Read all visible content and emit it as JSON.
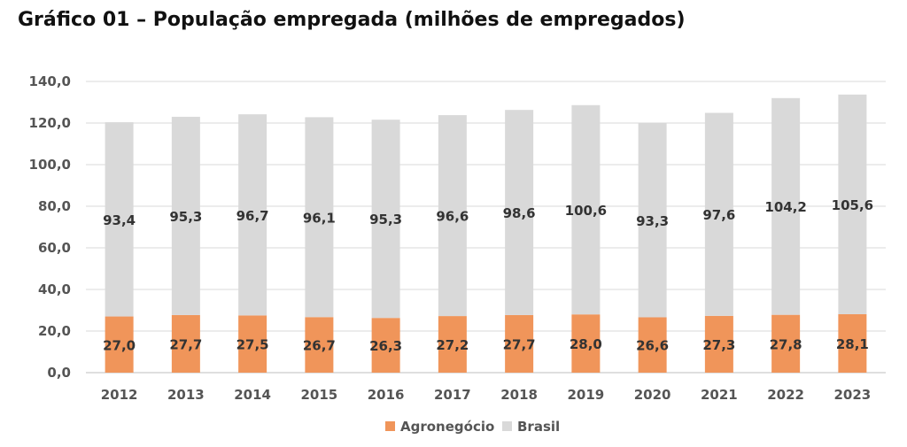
{
  "chart_data": {
    "type": "bar",
    "stacked": true,
    "title": "Gráfico 01 – População empregada (milhões de empregados)",
    "categories": [
      "2012",
      "2013",
      "2014",
      "2015",
      "2016",
      "2017",
      "2018",
      "2019",
      "2020",
      "2021",
      "2022",
      "2023"
    ],
    "series": [
      {
        "name": "Agronegócio",
        "color": "#f0955a",
        "values": [
          27.0,
          27.7,
          27.5,
          26.7,
          26.3,
          27.2,
          27.7,
          28.0,
          26.6,
          27.3,
          27.8,
          28.1
        ],
        "labels": [
          "27,0",
          "27,7",
          "27,5",
          "26,7",
          "26,3",
          "27,2",
          "27,7",
          "28,0",
          "26,6",
          "27,3",
          "27,8",
          "28,1"
        ]
      },
      {
        "name": "Brasil",
        "color": "#d9d9d9",
        "values": [
          93.4,
          95.3,
          96.7,
          96.1,
          95.3,
          96.6,
          98.6,
          100.6,
          93.3,
          97.6,
          104.2,
          105.6
        ],
        "labels": [
          "93,4",
          "95,3",
          "96,7",
          "96,1",
          "95,3",
          "96,6",
          "98,6",
          "100,6",
          "93,3",
          "97,6",
          "104,2",
          "105,6"
        ]
      }
    ],
    "ylim": [
      0,
      140
    ],
    "yticks": [
      0,
      20,
      40,
      60,
      80,
      100,
      120,
      140
    ],
    "ytick_labels": [
      "0,0",
      "20,0",
      "40,0",
      "60,0",
      "80,0",
      "100,0",
      "120,0",
      "140,0"
    ],
    "grid": true,
    "legend_position": "bottom-center",
    "gridline_color": "#d9d9d9",
    "axis_color": "#bfbfbf"
  }
}
